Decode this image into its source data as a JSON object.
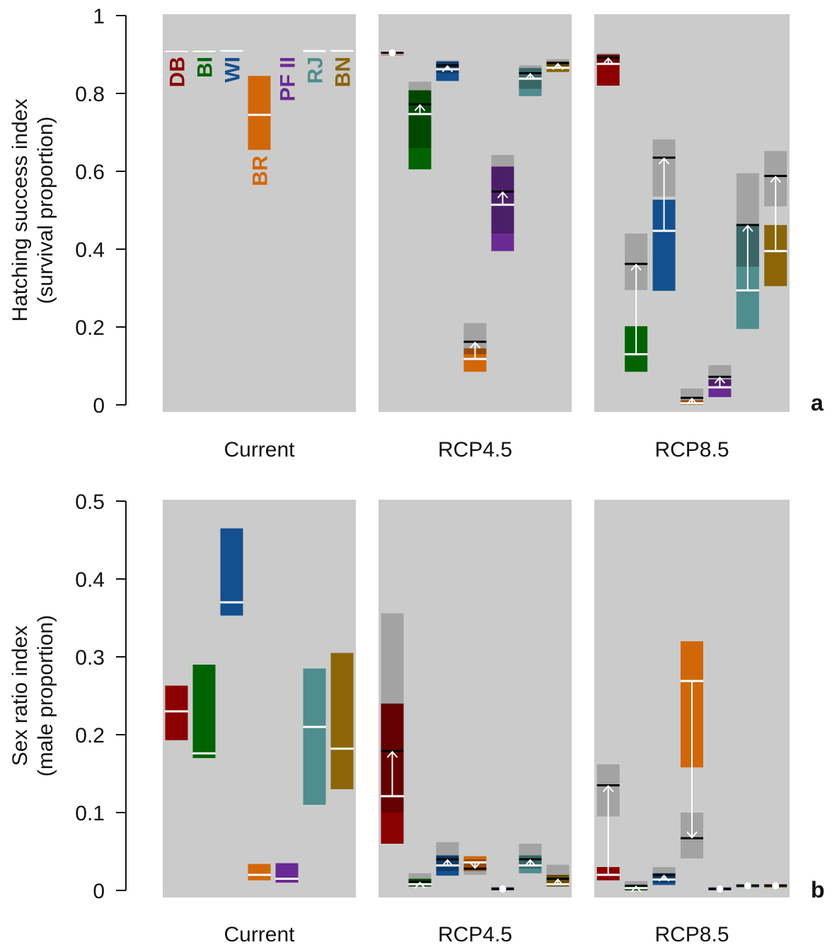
{
  "chart_data": [
    {
      "type": "box",
      "panel_letter": "a",
      "ylabel": "Hatching success index",
      "ylabel2": "(survival proportion)",
      "ylim": [
        0,
        1
      ],
      "yticks": [
        "0",
        "0.2",
        "0.4",
        "0.6",
        "0.8",
        "1"
      ],
      "ytick_values": [
        0,
        0.2,
        0.4,
        0.6,
        0.8,
        1
      ],
      "categories": [
        "Current",
        "RCP4.5",
        "RCP8.5"
      ],
      "series_labels": [
        "DB",
        "BI",
        "WI",
        "BR",
        "PF II",
        "RJ",
        "BN"
      ],
      "series_colors": [
        "#8b0000",
        "#006400",
        "#144f8f",
        "#d2670a",
        "#6a2a93",
        "#4f8d8e",
        "#8b6508"
      ],
      "groups": [
        [
          {
            "low": 0.905,
            "high": 0.911,
            "mean": 0.908
          },
          {
            "low": 0.905,
            "high": 0.911,
            "mean": 0.908
          },
          {
            "low": 0.906,
            "high": 0.912,
            "mean": 0.909
          },
          {
            "low": 0.655,
            "high": 0.845,
            "mean": 0.745
          },
          null,
          {
            "low": 0.907,
            "high": 0.912,
            "mean": 0.909
          },
          {
            "low": 0.906,
            "high": 0.912,
            "mean": 0.909
          }
        ],
        [
          {
            "low": 0.898,
            "high": 0.906,
            "mean": 0.902,
            "future": 0.904,
            "fut_low": 0.9,
            "fut_high": 0.906,
            "dot": true
          },
          {
            "low": 0.605,
            "high": 0.808,
            "mean": 0.747,
            "future": 0.772,
            "fut_low": 0.66,
            "fut_high": 0.83
          },
          {
            "low": 0.832,
            "high": 0.882,
            "mean": 0.862,
            "future": 0.872,
            "fut_low": 0.852,
            "fut_high": 0.885
          },
          {
            "low": 0.085,
            "high": 0.145,
            "mean": 0.118,
            "future": 0.162,
            "fut_low": 0.13,
            "fut_high": 0.21
          },
          {
            "low": 0.395,
            "high": 0.612,
            "mean": 0.514,
            "future": 0.548,
            "fut_low": 0.44,
            "fut_high": 0.642
          },
          {
            "low": 0.793,
            "high": 0.865,
            "mean": 0.838,
            "future": 0.852,
            "fut_low": 0.812,
            "fut_high": 0.872
          },
          {
            "low": 0.855,
            "high": 0.882,
            "mean": 0.866,
            "future": 0.878,
            "fut_low": 0.868,
            "fut_high": 0.888
          }
        ],
        [
          {
            "low": 0.82,
            "high": 0.9,
            "mean": 0.876,
            "future": 0.892,
            "fut_low": 0.876,
            "fut_high": 0.903
          },
          {
            "low": 0.085,
            "high": 0.202,
            "mean": 0.13,
            "future": 0.362,
            "fut_low": 0.295,
            "fut_high": 0.44
          },
          {
            "low": 0.293,
            "high": 0.527,
            "mean": 0.447,
            "future": 0.635,
            "fut_low": 0.535,
            "fut_high": 0.682
          },
          {
            "low": 0.0,
            "high": 0.012,
            "mean": 0.004,
            "future": 0.018,
            "fut_low": 0.0,
            "fut_high": 0.042
          },
          {
            "low": 0.02,
            "high": 0.065,
            "mean": 0.045,
            "future": 0.072,
            "fut_low": 0.05,
            "fut_high": 0.102
          },
          {
            "low": 0.195,
            "high": 0.462,
            "mean": 0.294,
            "future": 0.462,
            "fut_low": 0.355,
            "fut_high": 0.595
          },
          {
            "low": 0.305,
            "high": 0.462,
            "mean": 0.395,
            "future": 0.588,
            "fut_low": 0.51,
            "fut_high": 0.652
          }
        ]
      ]
    },
    {
      "type": "box",
      "panel_letter": "b",
      "ylabel": "Sex ratio index",
      "ylabel2": "(male proportion)",
      "ylim": [
        0,
        0.5
      ],
      "yticks": [
        "0",
        "0.1",
        "0.2",
        "0.3",
        "0.4",
        "0.5"
      ],
      "ytick_values": [
        0,
        0.1,
        0.2,
        0.3,
        0.4,
        0.5
      ],
      "categories": [
        "Current",
        "RCP4.5",
        "RCP8.5"
      ],
      "series_colors": [
        "#8b0000",
        "#006400",
        "#144f8f",
        "#d2670a",
        "#6a2a93",
        "#4f8d8e",
        "#8b6508"
      ],
      "groups": [
        [
          {
            "low": 0.193,
            "high": 0.263,
            "mean": 0.23
          },
          {
            "low": 0.17,
            "high": 0.29,
            "mean": 0.176
          },
          {
            "low": 0.353,
            "high": 0.465,
            "mean": 0.37
          },
          {
            "low": 0.013,
            "high": 0.034,
            "mean": 0.02
          },
          {
            "low": 0.01,
            "high": 0.035,
            "mean": 0.015
          },
          {
            "low": 0.11,
            "high": 0.285,
            "mean": 0.21
          },
          {
            "low": 0.13,
            "high": 0.305,
            "mean": 0.182
          }
        ],
        [
          {
            "low": 0.06,
            "high": 0.24,
            "mean": 0.121,
            "future": 0.179,
            "fut_low": 0.1,
            "fut_high": 0.356
          },
          {
            "low": 0.005,
            "high": 0.015,
            "mean": 0.008,
            "future": 0.011,
            "fut_low": 0.005,
            "fut_high": 0.022
          },
          {
            "low": 0.019,
            "high": 0.045,
            "mean": 0.032,
            "future": 0.04,
            "fut_low": 0.025,
            "fut_high": 0.062
          },
          {
            "low": 0.025,
            "high": 0.044,
            "mean": 0.036,
            "future": 0.028,
            "fut_low": 0.02,
            "fut_high": 0.04
          },
          {
            "low": 0.0,
            "high": 0.004,
            "mean": 0.002,
            "future": 0.002,
            "fut_low": 0.0,
            "fut_high": 0.004,
            "dot": true
          },
          {
            "low": 0.022,
            "high": 0.045,
            "mean": 0.032,
            "future": 0.04,
            "fut_low": 0.028,
            "fut_high": 0.06
          },
          {
            "low": 0.005,
            "high": 0.02,
            "mean": 0.008,
            "future": 0.015,
            "fut_low": 0.005,
            "fut_high": 0.033
          }
        ],
        [
          {
            "low": 0.013,
            "high": 0.03,
            "mean": 0.02,
            "future": 0.135,
            "fut_low": 0.095,
            "fut_high": 0.162
          },
          {
            "low": 0.0,
            "high": 0.006,
            "mean": 0.003,
            "future": 0.006,
            "fut_low": 0.0,
            "fut_high": 0.012
          },
          {
            "low": 0.007,
            "high": 0.022,
            "mean": 0.014,
            "future": 0.02,
            "fut_low": 0.01,
            "fut_high": 0.03
          },
          {
            "low": 0.158,
            "high": 0.32,
            "mean": 0.269,
            "future": 0.067,
            "fut_low": 0.041,
            "fut_high": 0.1
          },
          {
            "low": 0.0,
            "high": 0.004,
            "mean": 0.002,
            "future": 0.002,
            "fut_low": 0.0,
            "fut_high": 0.003,
            "dot": true
          },
          {
            "low": 0.004,
            "high": 0.008,
            "mean": 0.006,
            "future": 0.006,
            "fut_low": 0.004,
            "fut_high": 0.008,
            "dot": true
          },
          {
            "low": 0.004,
            "high": 0.008,
            "mean": 0.006,
            "future": 0.006,
            "fut_low": 0.004,
            "fut_high": 0.008,
            "dot": true
          }
        ]
      ]
    }
  ]
}
